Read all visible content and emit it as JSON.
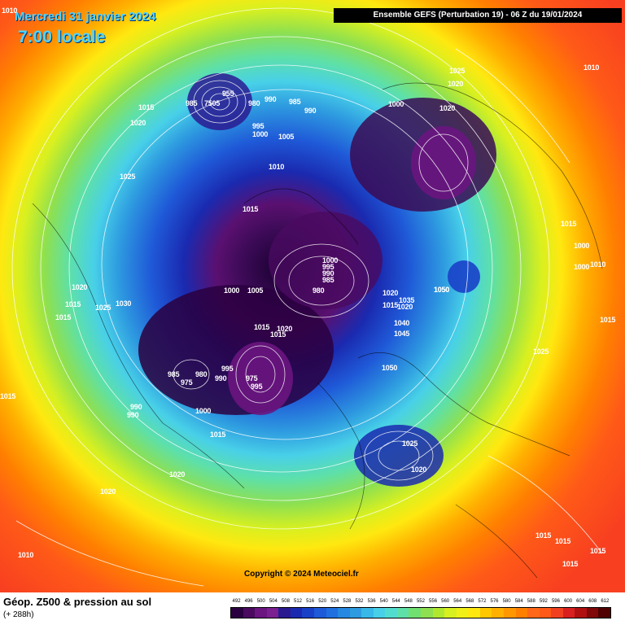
{
  "header": {
    "date_line": "Mercredi 31 janvier 2024",
    "time_line": "7:00 locale",
    "model_banner": "Ensemble GEFS  (Perturbation 19)  -  06 Z du 19/01/2024"
  },
  "map": {
    "copyright": "Copyright © 2024 Meteociel.fr",
    "pressure_labels": [
      "1010",
      "955",
      "985",
      "7505",
      "980",
      "990",
      "985",
      "990",
      "1000",
      "1025",
      "1020",
      "1020",
      "1010",
      "1015",
      "1020",
      "995",
      "1000",
      "1005",
      "1010",
      "1025",
      "1015",
      "1015",
      "1000",
      "1000",
      "1010",
      "1000",
      "995",
      "990",
      "985",
      "980",
      "1000",
      "1005",
      "1020",
      "1020",
      "1030",
      "1015",
      "1015",
      "1025",
      "1020",
      "1015",
      "1035",
      "1040",
      "1045",
      "1050",
      "1050",
      "1015",
      "1020",
      "1015",
      "1025",
      "985",
      "980",
      "975",
      "990",
      "995",
      "975",
      "990",
      "995",
      "990",
      "1000",
      "1015",
      "1015",
      "1015",
      "1050",
      "1025",
      "1020",
      "1020",
      "1020",
      "1010",
      "1015",
      "1015",
      "1015",
      "1015"
    ]
  },
  "footer": {
    "title": "Géop. Z500 & pression au sol",
    "subtitle": "(+ 288h)"
  },
  "scale": {
    "ticks": [
      "492",
      "496",
      "500",
      "504",
      "508",
      "512",
      "516",
      "520",
      "524",
      "528",
      "532",
      "536",
      "540",
      "544",
      "548",
      "552",
      "556",
      "560",
      "564",
      "568",
      "572",
      "576",
      "580",
      "584",
      "588",
      "592",
      "596",
      "600",
      "604",
      "608",
      "612"
    ],
    "colors": [
      "#2a0040",
      "#4a0a60",
      "#6a1580",
      "#7a2090",
      "#2a1a90",
      "#1a2ab0",
      "#1a40c8",
      "#1f5ad8",
      "#2070e0",
      "#2688e0",
      "#2e9be0",
      "#38b8e8",
      "#48d0e8",
      "#52dcd0",
      "#5ee0a8",
      "#70e070",
      "#8ee050",
      "#b0e830",
      "#d8f020",
      "#f0f018",
      "#ffe810",
      "#ffc800",
      "#ffb000",
      "#ff9800",
      "#ff8000",
      "#ff6818",
      "#ff5a18",
      "#f04020",
      "#d82020",
      "#b01010",
      "#800808",
      "#500000"
    ],
    "colors_note": ""
  }
}
